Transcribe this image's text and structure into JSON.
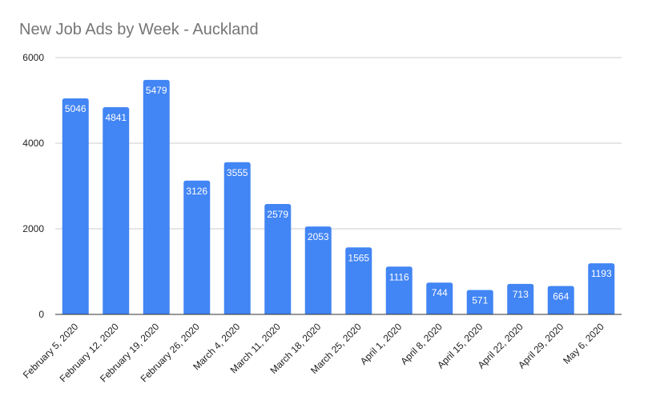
{
  "chart_data": {
    "type": "bar",
    "title": "New Job Ads by Week - Auckland",
    "categories": [
      "February 5, 2020",
      "February 12, 2020",
      "February 19, 2020",
      "February 26, 2020",
      "March 4, 2020",
      "March 11, 2020",
      "March 18, 2020",
      "March 25, 2020",
      "April 1, 2020",
      "April 8, 2020",
      "April 15, 2020",
      "April 22, 2020",
      "April 29, 2020",
      "May 6, 2020"
    ],
    "values": [
      5046,
      4841,
      5479,
      3126,
      3555,
      2579,
      2053,
      1565,
      1116,
      744,
      571,
      713,
      664,
      1193
    ],
    "ylim": [
      0,
      6000
    ],
    "yticks": [
      0,
      2000,
      4000,
      6000
    ],
    "xlabel": "",
    "ylabel": "",
    "grid": true,
    "data_labels": true,
    "colors": {
      "bar": "#4285f4",
      "grid": "#cccccc",
      "axis": "#333333",
      "title": "#757575"
    }
  }
}
